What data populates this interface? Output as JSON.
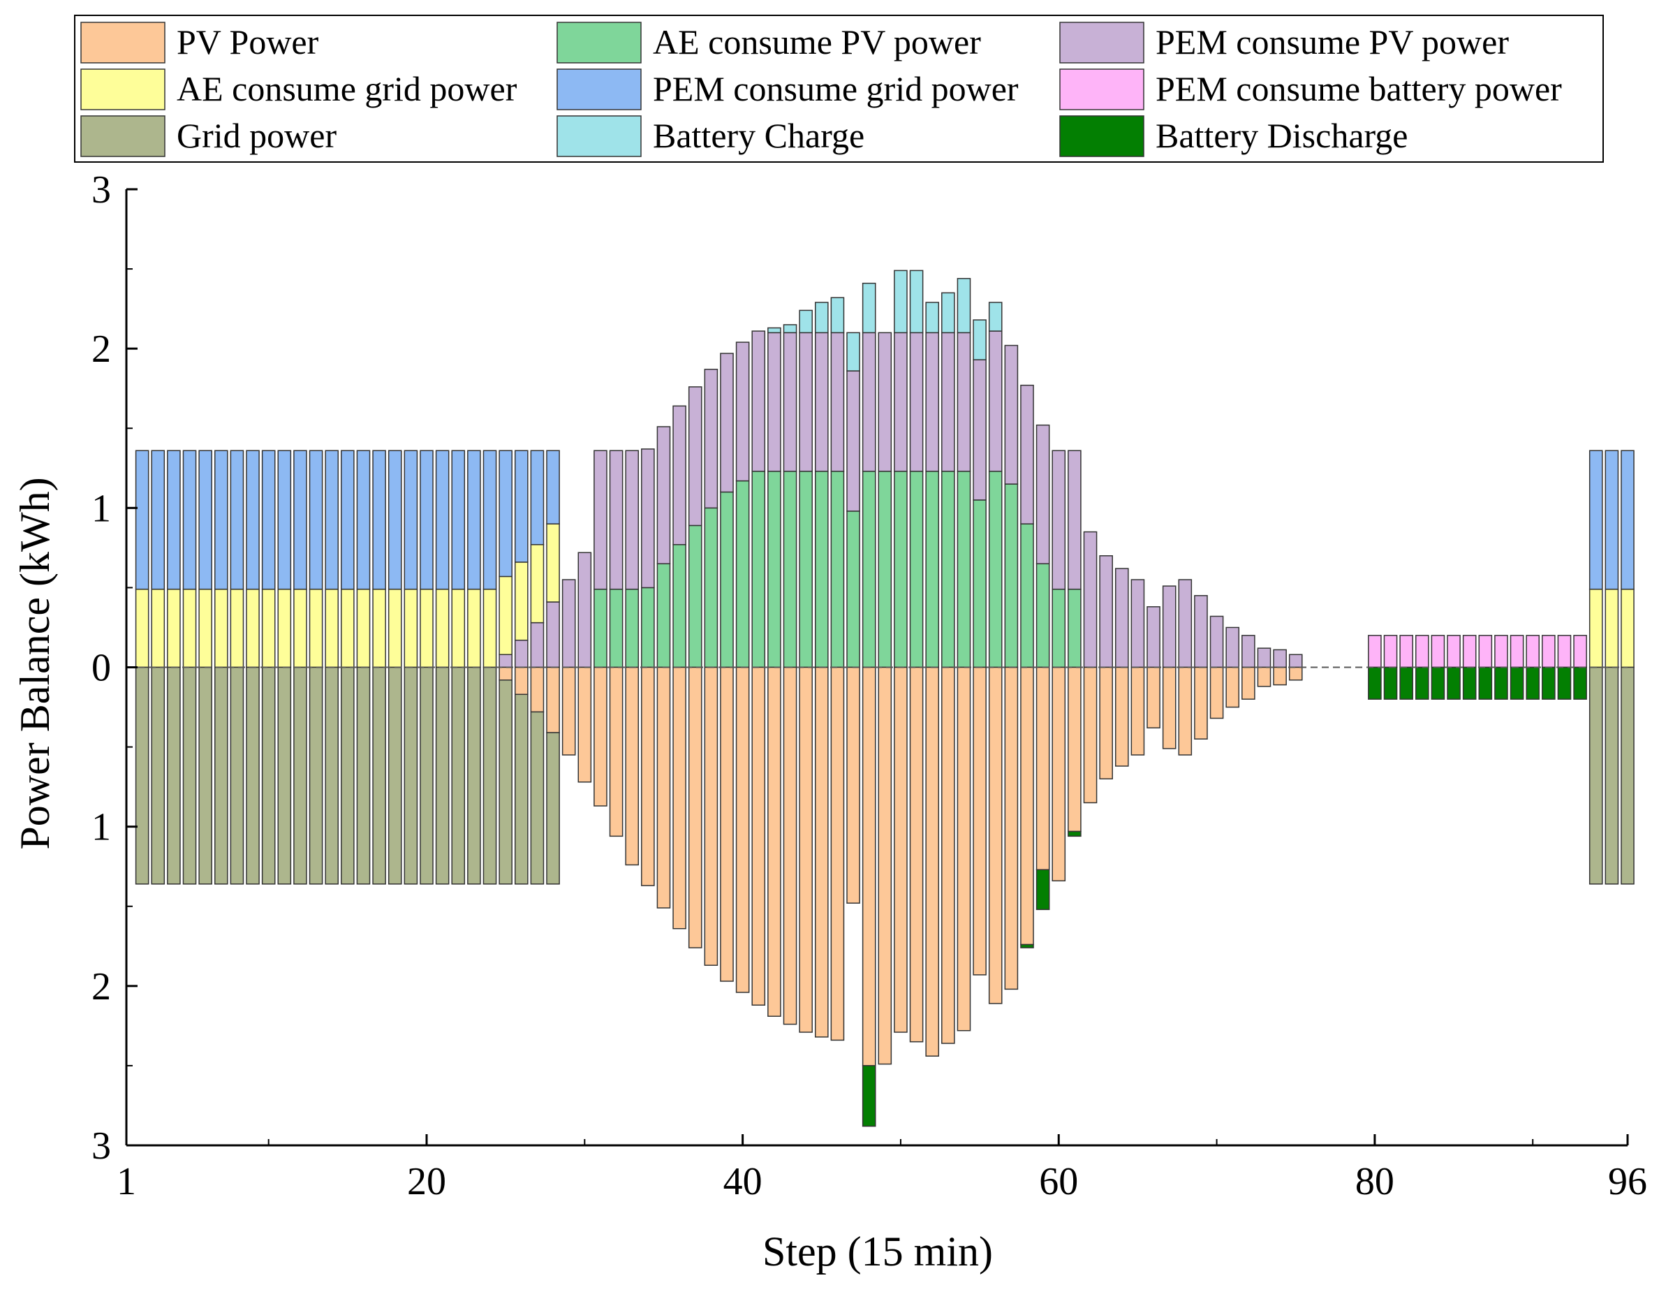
{
  "chart_data": {
    "type": "bar",
    "stacked": true,
    "title": "",
    "xlabel": "Step (15 min)",
    "ylabel": "Power Balance (kWh)",
    "xlim": [
      1,
      96
    ],
    "ylim": [
      -3,
      3
    ],
    "x_ticks": [
      "1",
      "20",
      "40",
      "60",
      "80",
      "96"
    ],
    "y_ticks": [
      "3",
      "2",
      "1",
      "0",
      "1",
      "2",
      "3"
    ],
    "legend_position": "top",
    "colors": {
      "pv": "#FDC898",
      "ae_pv": "#7FD69A",
      "pem_pv": "#C8B1D6",
      "ae_grid": "#FEFE99",
      "pem_grid": "#8DB9F3",
      "pem_batt": "#FEB4F8",
      "grid": "#ADB68D",
      "batt_charge": "#9FE3E9",
      "batt_discharge": "#037F02"
    },
    "legend": [
      {
        "key": "pv",
        "label": "PV Power"
      },
      {
        "key": "ae_pv",
        "label": "AE consume PV power"
      },
      {
        "key": "pem_pv",
        "label": "PEM consume PV power"
      },
      {
        "key": "ae_grid",
        "label": "AE consume grid power"
      },
      {
        "key": "pem_grid",
        "label": "PEM consume grid power"
      },
      {
        "key": "pem_batt",
        "label": "PEM consume battery power"
      },
      {
        "key": "grid",
        "label": "Grid power"
      },
      {
        "key": "batt_charge",
        "label": "Battery Charge"
      },
      {
        "key": "batt_discharge",
        "label": "Battery Discharge"
      }
    ],
    "steps": [
      2,
      3,
      4,
      5,
      6,
      7,
      8,
      9,
      10,
      11,
      12,
      13,
      14,
      15,
      16,
      17,
      18,
      19,
      20,
      21,
      22,
      23,
      24,
      25,
      26,
      27,
      28,
      29,
      30,
      31,
      32,
      33,
      34,
      35,
      36,
      37,
      38,
      39,
      40,
      41,
      42,
      43,
      44,
      45,
      46,
      47,
      48,
      49,
      50,
      51,
      52,
      53,
      54,
      55,
      56,
      57,
      58,
      59,
      60,
      61,
      62,
      63,
      64,
      65,
      66,
      67,
      68,
      69,
      70,
      71,
      72,
      73,
      74,
      75,
      76,
      77,
      78,
      79,
      80,
      81,
      82,
      83,
      84,
      85,
      86,
      87,
      88,
      89,
      90,
      91,
      92,
      93,
      94,
      95,
      96
    ],
    "series_positive": {
      "ae_pv": [
        0,
        0,
        0,
        0,
        0,
        0,
        0,
        0,
        0,
        0,
        0,
        0,
        0,
        0,
        0,
        0,
        0,
        0,
        0,
        0,
        0,
        0,
        0,
        0,
        0,
        0,
        0,
        0,
        0,
        0.49,
        0.49,
        0.49,
        0.5,
        0.65,
        0.77,
        0.89,
        1.0,
        1.1,
        1.17,
        1.23,
        1.23,
        1.23,
        1.23,
        1.23,
        1.23,
        0.98,
        1.23,
        1.23,
        1.23,
        1.23,
        1.23,
        1.23,
        1.23,
        1.05,
        1.23,
        1.15,
        0.9,
        0.65,
        0.49,
        0.49,
        0,
        0,
        0,
        0,
        0,
        0,
        0,
        0,
        0,
        0,
        0,
        0,
        0,
        0,
        0,
        0,
        0,
        0,
        0,
        0,
        0,
        0,
        0,
        0,
        0,
        0,
        0,
        0,
        0,
        0,
        0,
        0,
        0,
        0,
        0
      ],
      "pem_pv": [
        0,
        0,
        0,
        0,
        0,
        0,
        0,
        0,
        0,
        0,
        0,
        0,
        0,
        0,
        0,
        0,
        0,
        0,
        0,
        0,
        0,
        0,
        0,
        0.08,
        0.17,
        0.28,
        0.41,
        0.55,
        0.72,
        0.87,
        0.87,
        0.87,
        0.87,
        0.86,
        0.87,
        0.87,
        0.87,
        0.87,
        0.87,
        0.88,
        0.87,
        0.87,
        0.87,
        0.87,
        0.87,
        0.88,
        0.87,
        0.87,
        0.87,
        0.87,
        0.87,
        0.87,
        0.87,
        0.88,
        0.88,
        0.87,
        0.87,
        0.87,
        0.87,
        0.87,
        0.85,
        0.7,
        0.62,
        0.55,
        0.38,
        0.51,
        0.55,
        0.45,
        0.32,
        0.25,
        0.2,
        0.12,
        0.11,
        0.08,
        0,
        0,
        0,
        0,
        0,
        0,
        0,
        0,
        0,
        0,
        0,
        0,
        0,
        0,
        0,
        0,
        0,
        0,
        0,
        0
      ],
      "ae_grid": [
        0.49,
        0.49,
        0.49,
        0.49,
        0.49,
        0.49,
        0.49,
        0.49,
        0.49,
        0.49,
        0.49,
        0.49,
        0.49,
        0.49,
        0.49,
        0.49,
        0.49,
        0.49,
        0.49,
        0.49,
        0.49,
        0.49,
        0.49,
        0.49,
        0.49,
        0.49,
        0.49,
        0,
        0,
        0,
        0,
        0,
        0,
        0,
        0,
        0,
        0,
        0,
        0,
        0,
        0,
        0,
        0,
        0,
        0,
        0,
        0,
        0,
        0,
        0,
        0,
        0,
        0,
        0,
        0,
        0,
        0,
        0,
        0,
        0,
        0,
        0,
        0,
        0,
        0,
        0,
        0,
        0,
        0,
        0,
        0,
        0,
        0,
        0,
        0,
        0,
        0,
        0,
        0,
        0,
        0,
        0,
        0,
        0,
        0,
        0,
        0,
        0,
        0,
        0,
        0,
        0,
        0.49,
        0.49,
        0.49
      ],
      "pem_grid": [
        0.87,
        0.87,
        0.87,
        0.87,
        0.87,
        0.87,
        0.87,
        0.87,
        0.87,
        0.87,
        0.87,
        0.87,
        0.87,
        0.87,
        0.87,
        0.87,
        0.87,
        0.87,
        0.87,
        0.87,
        0.87,
        0.87,
        0.87,
        0.79,
        0.7,
        0.59,
        0.46,
        0,
        0,
        0,
        0,
        0,
        0,
        0,
        0,
        0,
        0,
        0,
        0,
        0,
        0,
        0,
        0,
        0,
        0,
        0,
        0,
        0,
        0,
        0,
        0,
        0,
        0,
        0,
        0,
        0,
        0,
        0,
        0,
        0,
        0,
        0,
        0,
        0,
        0,
        0,
        0,
        0,
        0,
        0,
        0,
        0,
        0,
        0,
        0,
        0,
        0,
        0,
        0,
        0,
        0,
        0,
        0,
        0,
        0,
        0,
        0,
        0,
        0,
        0,
        0,
        0,
        0.87,
        0.87,
        0.87
      ],
      "pem_batt": [
        0,
        0,
        0,
        0,
        0,
        0,
        0,
        0,
        0,
        0,
        0,
        0,
        0,
        0,
        0,
        0,
        0,
        0,
        0,
        0,
        0,
        0,
        0,
        0,
        0,
        0,
        0,
        0,
        0,
        0,
        0,
        0,
        0,
        0,
        0,
        0,
        0,
        0,
        0,
        0,
        0,
        0,
        0,
        0,
        0,
        0,
        0,
        0,
        0,
        0,
        0,
        0,
        0,
        0,
        0,
        0,
        0,
        0,
        0,
        0,
        0,
        0,
        0,
        0,
        0,
        0,
        0,
        0,
        0,
        0,
        0,
        0,
        0,
        0,
        0,
        0,
        0,
        0,
        0.2,
        0.2,
        0.2,
        0.2,
        0.2,
        0.2,
        0.2,
        0.2,
        0.2,
        0.2,
        0.2,
        0.2,
        0.2,
        0.2,
        0,
        0,
        0
      ],
      "batt_charge": [
        0,
        0,
        0,
        0,
        0,
        0,
        0,
        0,
        0,
        0,
        0,
        0,
        0,
        0,
        0,
        0,
        0,
        0,
        0,
        0,
        0,
        0,
        0,
        0,
        0,
        0,
        0,
        0,
        0,
        0,
        0,
        0,
        0,
        0,
        0,
        0,
        0,
        0,
        0,
        0,
        0.03,
        0.05,
        0.14,
        0.19,
        0.22,
        0.24,
        0.31,
        0,
        0.39,
        0.39,
        0.19,
        0.25,
        0.34,
        0.25,
        0.18,
        0,
        0,
        0,
        0,
        0,
        0,
        0,
        0,
        0,
        0,
        0,
        0,
        0,
        0,
        0,
        0,
        0,
        0,
        0,
        0,
        0,
        0,
        0,
        0,
        0,
        0,
        0,
        0,
        0,
        0,
        0,
        0,
        0,
        0,
        0,
        0,
        0,
        0,
        0,
        0
      ]
    },
    "series_negative": {
      "pv": [
        0,
        0,
        0,
        0,
        0,
        0,
        0,
        0,
        0,
        0,
        0,
        0,
        0,
        0,
        0,
        0,
        0,
        0,
        0,
        0,
        0,
        0,
        0,
        0.08,
        0.17,
        0.28,
        0.41,
        0.55,
        0.72,
        0.87,
        1.06,
        1.24,
        1.37,
        1.51,
        1.64,
        1.76,
        1.87,
        1.97,
        2.04,
        2.12,
        2.19,
        2.24,
        2.29,
        2.32,
        2.34,
        1.48,
        2.5,
        2.49,
        2.29,
        2.35,
        2.44,
        2.36,
        2.28,
        1.93,
        2.11,
        2.02,
        1.74,
        1.27,
        1.34,
        1.03,
        0.85,
        0.7,
        0.62,
        0.55,
        0.38,
        0.51,
        0.55,
        0.45,
        0.32,
        0.25,
        0.2,
        0.12,
        0.11,
        0.08,
        0,
        0,
        0,
        0,
        0,
        0,
        0,
        0,
        0,
        0,
        0,
        0,
        0,
        0,
        0,
        0,
        0,
        0,
        0,
        0
      ],
      "grid": [
        1.36,
        1.36,
        1.36,
        1.36,
        1.36,
        1.36,
        1.36,
        1.36,
        1.36,
        1.36,
        1.36,
        1.36,
        1.36,
        1.36,
        1.36,
        1.36,
        1.36,
        1.36,
        1.36,
        1.36,
        1.36,
        1.36,
        1.36,
        1.28,
        1.19,
        1.08,
        0.95,
        0,
        0,
        0,
        0,
        0,
        0,
        0,
        0,
        0,
        0,
        0,
        0,
        0,
        0,
        0,
        0,
        0,
        0,
        0,
        0,
        0,
        0,
        0,
        0,
        0,
        0,
        0,
        0,
        0,
        0,
        0,
        0,
        0,
        0,
        0,
        0,
        0,
        0,
        0,
        0,
        0,
        0,
        0,
        0,
        0,
        0,
        0,
        0,
        0,
        0,
        0,
        0,
        0,
        0,
        0,
        0,
        0,
        0,
        0,
        0,
        0,
        0,
        0,
        0,
        0,
        1.36,
        1.36,
        1.36
      ],
      "batt_discharge": [
        0,
        0,
        0,
        0,
        0,
        0,
        0,
        0,
        0,
        0,
        0,
        0,
        0,
        0,
        0,
        0,
        0,
        0,
        0,
        0,
        0,
        0,
        0,
        0,
        0,
        0,
        0,
        0,
        0,
        0,
        0,
        0,
        0,
        0,
        0,
        0,
        0,
        0,
        0,
        0,
        0,
        0,
        0,
        0,
        0,
        0,
        0.38,
        0,
        0,
        0,
        0,
        0,
        0,
        0,
        0,
        0,
        0.02,
        0.25,
        0,
        0.03,
        0,
        0,
        0,
        0,
        0,
        0,
        0,
        0,
        0,
        0,
        0,
        0,
        0,
        0,
        0,
        0,
        0,
        0,
        0.2,
        0.2,
        0.2,
        0.2,
        0.2,
        0.2,
        0.2,
        0.2,
        0.2,
        0.2,
        0.2,
        0.2,
        0.2,
        0.2,
        0,
        0,
        0
      ]
    }
  }
}
